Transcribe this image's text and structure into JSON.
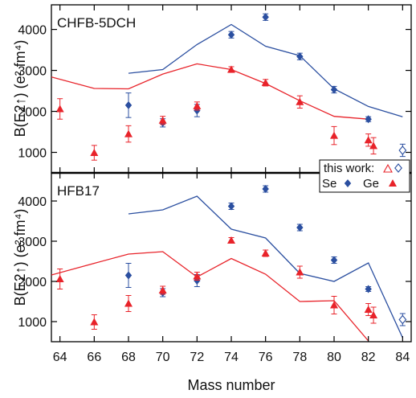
{
  "chart_data": {
    "type": "scatter",
    "xlabel": "Mass number",
    "xlim": [
      63.5,
      84.5
    ],
    "x_ticks": [
      64,
      66,
      68,
      70,
      72,
      74,
      76,
      78,
      80,
      82,
      84
    ],
    "ylabel_top": "B(E2↑) (e² fm⁴)",
    "ylabel_bottom": "B(E2↑) (e² fm⁴)",
    "legend": {
      "title": "this work:",
      "entries": [
        "Se",
        "Ge"
      ]
    },
    "colors": {
      "se": "#2b4fa0",
      "ge": "#e8232a"
    },
    "panels": [
      {
        "label": "CHFB-5DCH",
        "ylim": [
          500,
          4600
        ],
        "y_ticks": [
          1000,
          2000,
          3000,
          4000
        ],
        "series": [
          {
            "name": "Se",
            "kind": "points",
            "marker": "diamond",
            "x": [
              68,
              70,
              72,
              74,
              76,
              78,
              80,
              82
            ],
            "y": [
              2150,
              1720,
              2020,
              3870,
              4300,
              3340,
              2530,
              1810
            ],
            "err": [
              300,
              100,
              150,
              80,
              80,
              80,
              80,
              60
            ]
          },
          {
            "name": "Ge",
            "kind": "points",
            "marker": "triangle",
            "x": [
              64,
              66,
              68,
              70,
              72,
              74,
              76,
              78,
              80,
              82,
              82.3
            ],
            "y": [
              2060,
              990,
              1450,
              1780,
              2130,
              3020,
              2700,
              2230,
              1410,
              1300,
              1160
            ],
            "err": [
              250,
              180,
              200,
              100,
              100,
              70,
              80,
              150,
              220,
              150,
              200
            ]
          },
          {
            "name": "Se this work",
            "kind": "points",
            "marker": "open-diamond",
            "x": [
              84
            ],
            "y": [
              1050
            ],
            "err": [
              150
            ]
          },
          {
            "name": "Se theory",
            "kind": "line",
            "x": [
              68,
              70,
              72,
              74,
              76,
              78,
              80,
              82,
              84
            ],
            "y": [
              2930,
              3020,
              3630,
              4120,
              3590,
              3360,
              2550,
              2120,
              1870
            ]
          },
          {
            "name": "Ge theory",
            "kind": "line",
            "x": [
              63.5,
              66,
              68,
              70,
              72,
              74,
              76,
              78,
              80,
              82
            ],
            "y": [
              2840,
              2560,
              2550,
              2910,
              3160,
              3020,
              2680,
              2260,
              1880,
              1810
            ]
          }
        ]
      },
      {
        "label": "HFB17",
        "ylim": [
          500,
          4700
        ],
        "y_ticks": [
          1000,
          2000,
          3000,
          4000
        ],
        "series": [
          {
            "name": "Se",
            "kind": "points",
            "marker": "diamond",
            "x": [
              68,
              70,
              72,
              74,
              76,
              78,
              80,
              82
            ],
            "y": [
              2150,
              1720,
              2020,
              3870,
              4300,
              3340,
              2530,
              1810
            ],
            "err": [
              300,
              100,
              150,
              80,
              80,
              80,
              80,
              60
            ]
          },
          {
            "name": "Ge",
            "kind": "points",
            "marker": "triangle",
            "x": [
              64,
              66,
              68,
              70,
              72,
              74,
              76,
              78,
              80,
              82,
              82.3
            ],
            "y": [
              2060,
              990,
              1450,
              1780,
              2130,
              3020,
              2700,
              2230,
              1410,
              1300,
              1160
            ],
            "err": [
              250,
              180,
              200,
              100,
              100,
              70,
              80,
              150,
              220,
              150,
              200
            ]
          },
          {
            "name": "Se this work",
            "kind": "points",
            "marker": "open-diamond",
            "x": [
              84
            ],
            "y": [
              1050
            ],
            "err": [
              150
            ]
          },
          {
            "name": "Se theory",
            "kind": "line",
            "x": [
              68,
              70,
              72,
              74,
              76,
              78,
              80,
              82,
              84
            ],
            "y": [
              3680,
              3780,
              4120,
              3300,
              3080,
              2200,
              2000,
              2460,
              600
            ]
          },
          {
            "name": "Ge theory",
            "kind": "line",
            "x": [
              63.5,
              66,
              68,
              70,
              72,
              74,
              76,
              78,
              80,
              82
            ],
            "y": [
              2160,
              2450,
              2680,
              2740,
              2110,
              2570,
              2180,
              1500,
              1520,
              520
            ]
          }
        ]
      }
    ]
  }
}
